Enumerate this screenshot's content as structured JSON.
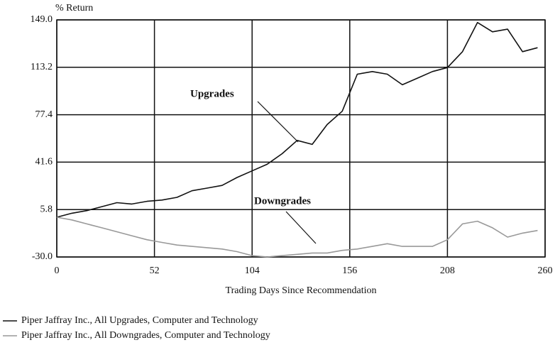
{
  "chart_data": {
    "type": "line",
    "y_label": "% Return",
    "x_label": "Trading Days Since Recommendation",
    "annotations": [
      "Upgrades",
      "Downgrades"
    ],
    "x": [
      0,
      8,
      16,
      24,
      32,
      40,
      48,
      56,
      64,
      72,
      80,
      88,
      96,
      104,
      112,
      120,
      128,
      136,
      144,
      152,
      160,
      168,
      176,
      184,
      192,
      200,
      208,
      216,
      224,
      232,
      240,
      248,
      256
    ],
    "series": [
      {
        "name": "Piper Jaffray Inc., All Upgrades, Computer and Technology",
        "color": "#111111",
        "values": [
          0,
          3,
          5,
          8,
          11,
          10,
          12,
          13,
          15,
          20,
          22,
          24,
          30,
          35,
          40,
          48,
          58,
          55,
          70,
          80,
          108,
          110,
          108,
          100,
          105,
          110,
          113,
          125,
          147,
          140,
          142,
          125,
          128
        ]
      },
      {
        "name": "Piper Jaffray Inc., All Downgrades, Computer and Technology",
        "color": "#999999",
        "values": [
          0,
          -2,
          -5,
          -8,
          -11,
          -14,
          -17,
          -19,
          -21,
          -22,
          -23,
          -24,
          -26,
          -29,
          -30,
          -29,
          -28,
          -27,
          -27,
          -25,
          -24,
          -22,
          -20,
          -22,
          -22,
          -22,
          -17,
          -5,
          -3,
          -8,
          -15,
          -12,
          -10
        ]
      }
    ],
    "xlim": [
      0,
      260
    ],
    "xticks": [
      0,
      52,
      104,
      156,
      208,
      260
    ],
    "ylim": [
      -30,
      149
    ],
    "yticks": [
      {
        "value": -30,
        "label": "-30.0"
      },
      5.8,
      41.6,
      77.4,
      113.2,
      {
        "value": 149,
        "label": "149.0"
      }
    ],
    "grid": true
  }
}
